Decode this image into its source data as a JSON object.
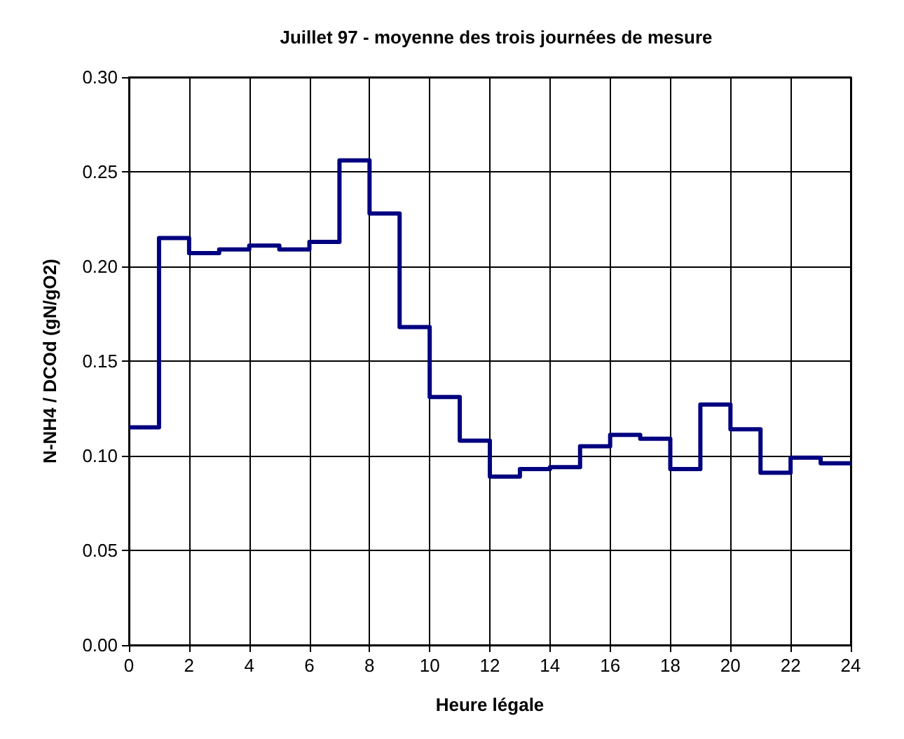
{
  "chart_data": {
    "type": "step",
    "title": "Juillet 97 - moyenne des trois journées de mesure",
    "xlabel": "Heure légale",
    "ylabel": "N-NH4 / DCOd (gN/gO2)",
    "x": [
      0,
      1,
      2,
      3,
      4,
      5,
      6,
      7,
      8,
      9,
      10,
      11,
      12,
      13,
      14,
      15,
      16,
      17,
      18,
      19,
      20,
      21,
      22,
      23,
      24
    ],
    "series": [
      {
        "color": "#000080",
        "values": [
          0.115,
          0.215,
          0.207,
          0.209,
          0.211,
          0.209,
          0.213,
          0.256,
          0.228,
          0.168,
          0.131,
          0.108,
          0.089,
          0.093,
          0.094,
          0.105,
          0.111,
          0.109,
          0.093,
          0.127,
          0.114,
          0.091,
          0.099,
          0.096,
          0.096
        ]
      }
    ],
    "xlim": [
      0,
      24
    ],
    "xticks": [
      0,
      2,
      4,
      6,
      8,
      10,
      12,
      14,
      16,
      18,
      20,
      22,
      24
    ],
    "ylim": [
      0,
      0.3
    ],
    "yticks": [
      {
        "value": 0,
        "label": "0.00"
      },
      {
        "value": 0.05,
        "label": "0.05"
      },
      {
        "value": 0.1,
        "label": "0.10"
      },
      {
        "value": 0.15,
        "label": "0.15"
      },
      {
        "value": 0.2,
        "label": "0.20"
      },
      {
        "value": 0.25,
        "label": "0.25"
      },
      {
        "value": 0.3,
        "label": "0.30"
      }
    ],
    "grid": true,
    "marker": "none",
    "line_style": "solid"
  }
}
